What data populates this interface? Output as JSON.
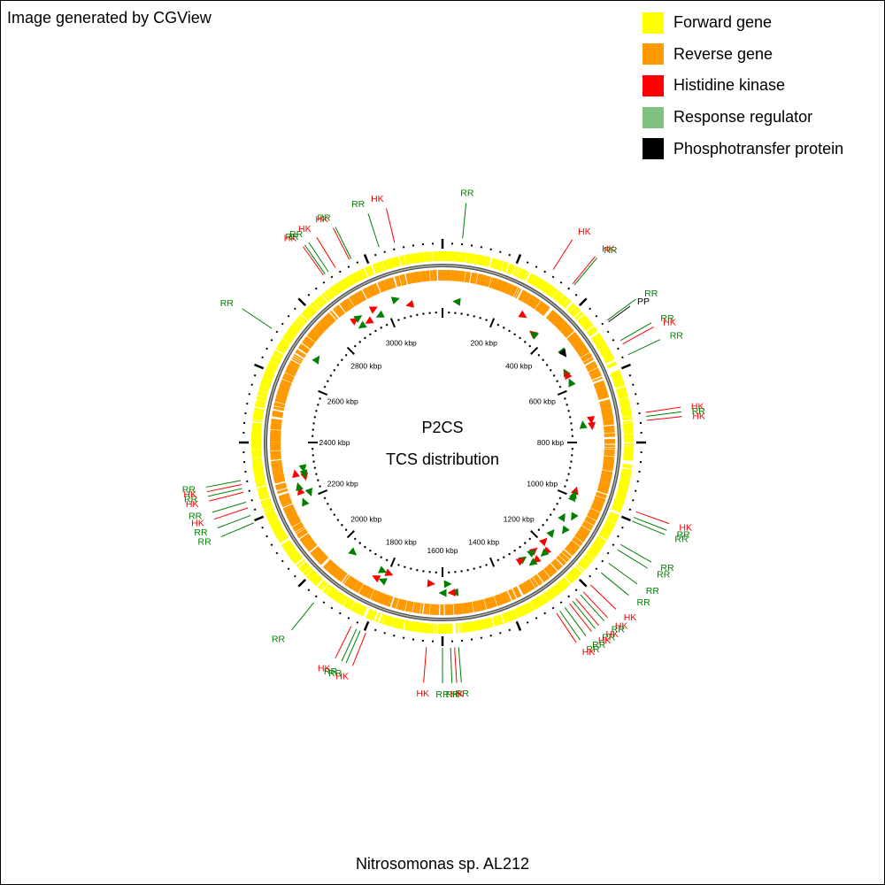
{
  "header": {
    "credit": "Image generated by CGView"
  },
  "legend": {
    "items": [
      {
        "label": "Forward gene",
        "color": "#ffff00"
      },
      {
        "label": "Reverse gene",
        "color": "#ff9900"
      },
      {
        "label": "Histidine kinase",
        "color": "#ff0000"
      },
      {
        "label": "Response regulator",
        "color": "#80c080"
      },
      {
        "label": "Phosphotransfer protein",
        "color": "#000000"
      }
    ]
  },
  "center": {
    "line1": "P2CS",
    "line2": "TCS distribution"
  },
  "footer": {
    "organism": "Nitrosomonas sp. AL212"
  },
  "genome": {
    "length_kbp": 3200
  },
  "scale": {
    "labels": [
      "200 kbp",
      "400 kbp",
      "600 kbp",
      "800 kbp",
      "1000 kbp",
      "1200 kbp",
      "1400 kbp",
      "1600 kbp",
      "1800 kbp",
      "2000 kbp",
      "2200 kbp",
      "2400 kbp",
      "2600 kbp",
      "2800 kbp",
      "3000 kbp"
    ]
  },
  "features": [
    {
      "label": "RR",
      "type": "RR",
      "kbp": 50,
      "strand": "reverse"
    },
    {
      "label": "HK",
      "type": "HK",
      "kbp": 290,
      "strand": "forward"
    },
    {
      "label": "HK",
      "type": "HK",
      "kbp": 350,
      "strand": "reverse"
    },
    {
      "label": "RR",
      "type": "RR",
      "kbp": 355,
      "strand": "reverse"
    },
    {
      "label": "RR",
      "type": "RR",
      "kbp": 475,
      "strand": "forward"
    },
    {
      "label": "PP",
      "type": "PP",
      "kbp": 480,
      "strand": "forward"
    },
    {
      "label": "RR",
      "type": "RR",
      "kbp": 535,
      "strand": "reverse"
    },
    {
      "label": "HK",
      "type": "HK",
      "kbp": 545,
      "strand": "reverse"
    },
    {
      "label": "RR",
      "type": "RR",
      "kbp": 575,
      "strand": "reverse"
    },
    {
      "label": "HK",
      "type": "HK",
      "kbp": 725,
      "strand": "forward"
    },
    {
      "label": "RR",
      "type": "RR",
      "kbp": 735,
      "strand": "reverse"
    },
    {
      "label": "HK",
      "type": "HK",
      "kbp": 745,
      "strand": "forward"
    },
    {
      "label": "HK",
      "type": "HK",
      "kbp": 975,
      "strand": "reverse"
    },
    {
      "label": "RR",
      "type": "RR",
      "kbp": 990,
      "strand": "reverse"
    },
    {
      "label": "RR",
      "type": "RR",
      "kbp": 1000,
      "strand": "reverse"
    },
    {
      "label": "RR",
      "type": "RR",
      "kbp": 1065,
      "strand": "forward"
    },
    {
      "label": "RR",
      "type": "RR",
      "kbp": 1080,
      "strand": "reverse"
    },
    {
      "label": "RR",
      "type": "RR",
      "kbp": 1120,
      "strand": "forward"
    },
    {
      "label": "RR",
      "type": "RR",
      "kbp": 1150,
      "strand": "reverse"
    },
    {
      "label": "HK",
      "type": "HK",
      "kbp": 1190,
      "strand": "reverse"
    },
    {
      "label": "HK",
      "type": "HK",
      "kbp": 1215,
      "strand": "forward"
    },
    {
      "label": "RR",
      "type": "RR",
      "kbp": 1225,
      "strand": "forward"
    },
    {
      "label": "HK",
      "type": "HK",
      "kbp": 1240,
      "strand": "reverse"
    },
    {
      "label": "RR",
      "type": "RR",
      "kbp": 1250,
      "strand": "reverse"
    },
    {
      "label": "HK",
      "type": "HK",
      "kbp": 1260,
      "strand": "forward"
    },
    {
      "label": "RR",
      "type": "RR",
      "kbp": 1275,
      "strand": "forward"
    },
    {
      "label": "RR",
      "type": "RR",
      "kbp": 1290,
      "strand": "reverse"
    },
    {
      "label": "HK",
      "type": "HK",
      "kbp": 1300,
      "strand": "reverse"
    },
    {
      "label": "RR",
      "type": "RR",
      "kbp": 1560,
      "strand": "forward"
    },
    {
      "label": "HK",
      "type": "HK",
      "kbp": 1570,
      "strand": "forward"
    },
    {
      "label": "RR",
      "type": "RR",
      "kbp": 1580,
      "strand": "reverse"
    },
    {
      "label": "RR",
      "type": "RR",
      "kbp": 1600,
      "strand": "forward"
    },
    {
      "label": "HK",
      "type": "HK",
      "kbp": 1640,
      "strand": "reverse"
    },
    {
      "label": "HK",
      "type": "HK",
      "kbp": 1795,
      "strand": "reverse"
    },
    {
      "label": "RR",
      "type": "RR",
      "kbp": 1810,
      "strand": "forward"
    },
    {
      "label": "RR",
      "type": "RR",
      "kbp": 1820,
      "strand": "reverse"
    },
    {
      "label": "HK",
      "type": "HK",
      "kbp": 1835,
      "strand": "forward"
    },
    {
      "label": "RR",
      "type": "RR",
      "kbp": 1945,
      "strand": "reverse"
    },
    {
      "label": "RR",
      "type": "RR",
      "kbp": 2195,
      "strand": "forward"
    },
    {
      "label": "RR",
      "type": "RR",
      "kbp": 2215,
      "strand": "reverse"
    },
    {
      "label": "HK",
      "type": "HK",
      "kbp": 2235,
      "strand": "forward"
    },
    {
      "label": "RR",
      "type": "RR",
      "kbp": 2250,
      "strand": "forward"
    },
    {
      "label": "HK",
      "type": "HK",
      "kbp": 2275,
      "strand": "reverse"
    },
    {
      "label": "RR",
      "type": "RR",
      "kbp": 2285,
      "strand": "reverse"
    },
    {
      "label": "HK",
      "type": "HK",
      "kbp": 2295,
      "strand": "forward"
    },
    {
      "label": "RR",
      "type": "RR",
      "kbp": 2305,
      "strand": "reverse"
    },
    {
      "label": "RR",
      "type": "RR",
      "kbp": 2700,
      "strand": "forward"
    },
    {
      "label": "HK",
      "type": "HK",
      "kbp": 2885,
      "strand": "forward"
    },
    {
      "label": "RR",
      "type": "RR",
      "kbp": 2890,
      "strand": "reverse"
    },
    {
      "label": "RR",
      "type": "RR",
      "kbp": 2900,
      "strand": "forward"
    },
    {
      "label": "HK",
      "type": "HK",
      "kbp": 2920,
      "strand": "reverse"
    },
    {
      "label": "HK",
      "type": "HK",
      "kbp": 2960,
      "strand": "forward"
    },
    {
      "label": "RR",
      "type": "RR",
      "kbp": 2965,
      "strand": "reverse"
    },
    {
      "label": "RR",
      "type": "RR",
      "kbp": 3040,
      "strand": "forward"
    },
    {
      "label": "HK",
      "type": "HK",
      "kbp": 3080,
      "strand": "reverse"
    }
  ]
}
